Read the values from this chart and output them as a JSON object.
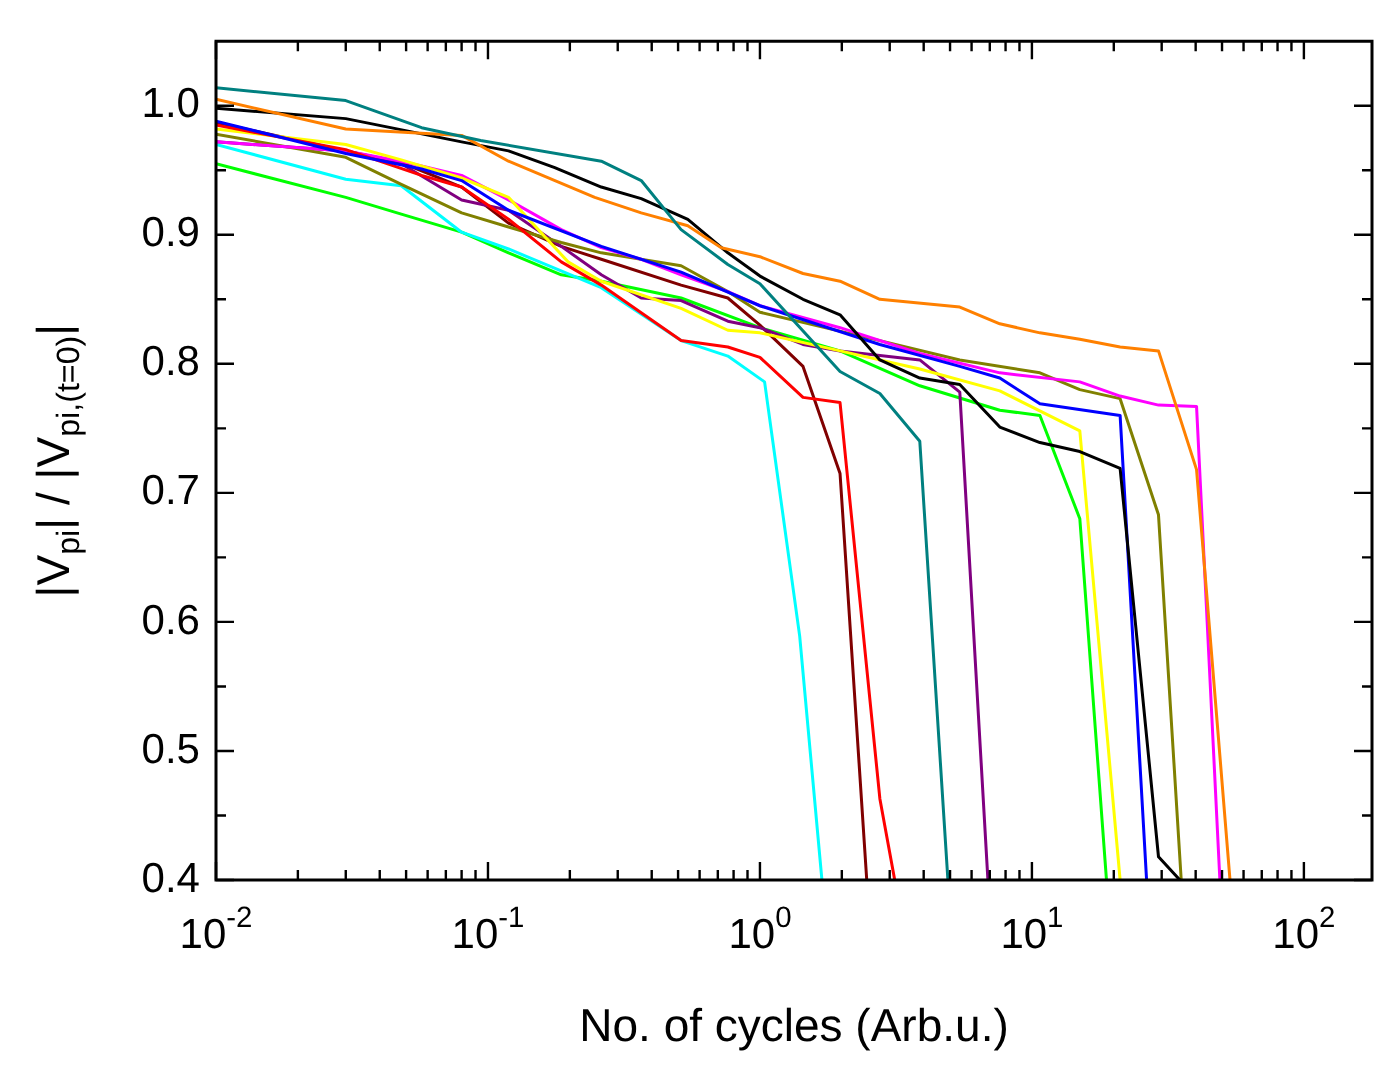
{
  "chart_data": {
    "type": "line",
    "xlabel": "No. of cycles (Arb.u.)",
    "ylabel": "|V$_{pi}$| / |V$_{pi,(t=0)}$|",
    "log": "x",
    "xlim": [
      0.01,
      178
    ],
    "ylim": [
      0.4,
      1.05
    ],
    "xticks": [
      {
        "value": 0.01,
        "label": "10$^{-2}$"
      },
      {
        "value": 0.02,
        "label": null
      },
      {
        "value": 0.03,
        "label": null
      },
      {
        "value": 0.04,
        "label": null
      },
      {
        "value": 0.05,
        "label": null
      },
      {
        "value": 0.06,
        "label": null
      },
      {
        "value": 0.07,
        "label": null
      },
      {
        "value": 0.08,
        "label": null
      },
      {
        "value": 0.09,
        "label": null
      },
      {
        "value": 0.1,
        "label": "10$^{-1}$"
      },
      {
        "value": 0.2,
        "label": null
      },
      {
        "value": 0.3,
        "label": null
      },
      {
        "value": 0.4,
        "label": null
      },
      {
        "value": 0.5,
        "label": null
      },
      {
        "value": 0.6,
        "label": null
      },
      {
        "value": 0.7,
        "label": null
      },
      {
        "value": 0.8,
        "label": null
      },
      {
        "value": 0.9,
        "label": null
      },
      {
        "value": 1,
        "label": "10$^{0}$"
      },
      {
        "value": 2,
        "label": null
      },
      {
        "value": 3,
        "label": null
      },
      {
        "value": 4,
        "label": null
      },
      {
        "value": 5,
        "label": null
      },
      {
        "value": 6,
        "label": null
      },
      {
        "value": 7,
        "label": null
      },
      {
        "value": 8,
        "label": null
      },
      {
        "value": 9,
        "label": null
      },
      {
        "value": 10,
        "label": "10$^{1}$"
      },
      {
        "value": 20,
        "label": null
      },
      {
        "value": 30,
        "label": null
      },
      {
        "value": 40,
        "label": null
      },
      {
        "value": 50,
        "label": null
      },
      {
        "value": 60,
        "label": null
      },
      {
        "value": 70,
        "label": null
      },
      {
        "value": 80,
        "label": null
      },
      {
        "value": 90,
        "label": null
      },
      {
        "value": 100,
        "label": "10$^{2}$"
      }
    ],
    "yticks": [
      0.4,
      {
        "value": 0.45,
        "label": null
      },
      0.5,
      {
        "value": 0.55,
        "label": null
      },
      0.6,
      {
        "value": 0.65,
        "label": null
      },
      0.7,
      {
        "value": 0.75,
        "label": null
      },
      0.8,
      {
        "value": 0.85,
        "label": null
      },
      0.9,
      {
        "value": 0.95,
        "label": null
      },
      {
        "value": 1,
        "label": "1.0"
      }
    ],
    "series": [
      {
        "color": "#008080",
        "x": [
          0.01,
          0.03,
          0.057,
          0.094,
          0.261,
          0.366,
          0.513,
          0.762,
          1,
          1.97,
          2.76,
          3.87,
          4.91
        ],
        "values": [
          1.014,
          1.004,
          0.983,
          0.973,
          0.957,
          0.942,
          0.904,
          0.877,
          0.862,
          0.794,
          0.777,
          0.74,
          0.4
        ]
      },
      {
        "color": "#ff8000",
        "x": [
          0.01,
          0.03,
          0.08,
          0.119,
          0.247,
          0.366,
          0.543,
          0.721,
          1,
          1.44,
          1.97,
          2.76,
          5.43,
          7.62,
          10.7,
          15.0,
          21.1,
          29.2,
          40.3,
          53.5
        ],
        "values": [
          1.005,
          0.982,
          0.977,
          0.957,
          0.929,
          0.917,
          0.907,
          0.89,
          0.883,
          0.87,
          0.864,
          0.85,
          0.844,
          0.831,
          0.824,
          0.819,
          0.813,
          0.81,
          0.718,
          0.4
        ]
      },
      {
        "color": "#000000",
        "x": [
          0.01,
          0.03,
          0.08,
          0.119,
          0.176,
          0.261,
          0.366,
          0.543,
          0.762,
          1,
          1.44,
          1.97,
          2.76,
          3.87,
          5.43,
          7.62,
          10.7,
          15.0,
          21.1,
          29.2,
          35.0
        ],
        "values": [
          0.998,
          0.99,
          0.972,
          0.965,
          0.952,
          0.937,
          0.928,
          0.912,
          0.886,
          0.868,
          0.85,
          0.838,
          0.803,
          0.789,
          0.784,
          0.751,
          0.739,
          0.732,
          0.719,
          0.418,
          0.4
        ]
      },
      {
        "color": "#0000ff",
        "x": [
          0.01,
          0.03,
          0.057,
          0.08,
          0.119,
          0.261,
          0.513,
          1,
          2.76,
          5.43,
          7.62,
          10.7,
          21.1,
          26.4
        ],
        "values": [
          0.988,
          0.963,
          0.951,
          0.942,
          0.919,
          0.891,
          0.871,
          0.845,
          0.815,
          0.798,
          0.789,
          0.769,
          0.76,
          0.4
        ]
      },
      {
        "color": "#ff0000",
        "x": [
          0.01,
          0.03,
          0.057,
          0.08,
          0.119,
          0.186,
          0.261,
          0.513,
          0.762,
          1,
          1.44,
          1.97,
          2.76,
          3.13
        ],
        "values": [
          0.985,
          0.966,
          0.946,
          0.937,
          0.912,
          0.879,
          0.861,
          0.818,
          0.813,
          0.805,
          0.774,
          0.77,
          0.463,
          0.4
        ]
      },
      {
        "color": "#ffff00",
        "x": [
          0.01,
          0.03,
          0.048,
          0.08,
          0.119,
          0.197,
          0.261,
          0.513,
          0.762,
          1,
          1.97,
          3.87,
          7.62,
          15.0,
          21.1
        ],
        "values": [
          0.982,
          0.97,
          0.958,
          0.944,
          0.929,
          0.879,
          0.864,
          0.843,
          0.826,
          0.824,
          0.81,
          0.796,
          0.779,
          0.748,
          0.4
        ]
      },
      {
        "color": "#ff00ff",
        "x": [
          0.01,
          0.03,
          0.048,
          0.08,
          0.119,
          0.186,
          0.261,
          0.366,
          0.513,
          0.762,
          1,
          1.97,
          3.87,
          7.62,
          15.0,
          21.1,
          29.2,
          40.3,
          49.1
        ],
        "values": [
          0.972,
          0.965,
          0.957,
          0.946,
          0.927,
          0.904,
          0.89,
          0.881,
          0.869,
          0.856,
          0.845,
          0.828,
          0.808,
          0.793,
          0.786,
          0.775,
          0.768,
          0.767,
          0.4
        ]
      },
      {
        "color": "#808000",
        "x": [
          0.01,
          0.03,
          0.048,
          0.08,
          0.119,
          0.186,
          0.261,
          0.513,
          0.762,
          1,
          2.76,
          5.43,
          10.7,
          15.0,
          21.1,
          29.2,
          35.4
        ],
        "values": [
          0.978,
          0.96,
          0.939,
          0.917,
          0.906,
          0.894,
          0.886,
          0.876,
          0.856,
          0.84,
          0.818,
          0.803,
          0.793,
          0.78,
          0.773,
          0.683,
          0.4
        ]
      },
      {
        "color": "#800080",
        "x": [
          0.01,
          0.03,
          0.048,
          0.08,
          0.119,
          0.186,
          0.261,
          0.366,
          0.513,
          0.762,
          1,
          1.44,
          1.97,
          3.87,
          5.43,
          6.89
        ],
        "values": [
          0.972,
          0.965,
          0.955,
          0.927,
          0.919,
          0.891,
          0.869,
          0.851,
          0.849,
          0.833,
          0.828,
          0.815,
          0.81,
          0.803,
          0.778,
          0.4
        ]
      },
      {
        "color": "#800000",
        "x": [
          0.01,
          0.03,
          0.048,
          0.08,
          0.119,
          0.186,
          0.261,
          0.513,
          0.762,
          1,
          1.44,
          1.97,
          2.47
        ],
        "values": [
          0.987,
          0.965,
          0.956,
          0.937,
          0.909,
          0.891,
          0.881,
          0.861,
          0.851,
          0.83,
          0.798,
          0.715,
          0.4
        ]
      },
      {
        "color": "#00ffff",
        "x": [
          0.01,
          0.03,
          0.048,
          0.08,
          0.119,
          0.261,
          0.513,
          0.762,
          1.04,
          1.4,
          1.69
        ],
        "values": [
          0.97,
          0.943,
          0.938,
          0.902,
          0.889,
          0.859,
          0.818,
          0.806,
          0.786,
          0.589,
          0.4
        ]
      },
      {
        "color": "#00ff00",
        "x": [
          0.01,
          0.03,
          0.048,
          0.08,
          0.119,
          0.186,
          0.261,
          0.513,
          1,
          1.97,
          3.87,
          7.62,
          10.7,
          15.0,
          18.8
        ],
        "values": [
          0.955,
          0.929,
          0.916,
          0.902,
          0.886,
          0.869,
          0.864,
          0.851,
          0.828,
          0.81,
          0.783,
          0.764,
          0.76,
          0.68,
          0.4
        ]
      }
    ]
  }
}
